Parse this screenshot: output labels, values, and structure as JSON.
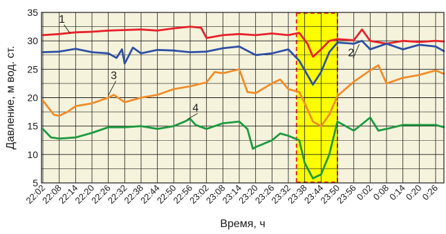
{
  "chart_data": {
    "type": "line",
    "xlabel": "Время, ч",
    "ylabel": "Давление, м вод. ст.",
    "ylim": [
      5,
      35
    ],
    "yticks": [
      5,
      10,
      15,
      20,
      25,
      30,
      35
    ],
    "x_tick_labels": [
      "22:02",
      "22:08",
      "22:14",
      "22:20",
      "22:26",
      "22:32",
      "22:38",
      "22:44",
      "22:50",
      "22:56",
      "23:02",
      "23:08",
      "23:14",
      "23:20",
      "23:26",
      "23:32",
      "23:38",
      "23:44",
      "23:50",
      "23:56",
      "0:02",
      "0:08",
      "0:14",
      "0:20",
      "0:26"
    ],
    "grid": true,
    "plot_background": "#f5f3dc",
    "highlight": {
      "x_start": "23:35",
      "x_end": "23:50",
      "fill_color": "#ffff00",
      "border_color": "#e03020"
    },
    "series": [
      {
        "name": "1",
        "color": "#e8202a",
        "x": [
          "22:02",
          "22:08",
          "22:14",
          "22:20",
          "22:26",
          "22:32",
          "22:38",
          "22:44",
          "22:50",
          "22:56",
          "23:00",
          "23:02",
          "23:08",
          "23:14",
          "23:20",
          "23:26",
          "23:32",
          "23:36",
          "23:39",
          "23:41",
          "23:44",
          "23:47",
          "23:50",
          "23:56",
          "23:59",
          "0:02",
          "0:08",
          "0:14",
          "0:20",
          "0:26",
          "0:29"
        ],
        "y": [
          31,
          31.2,
          31.5,
          31.6,
          31.8,
          31.9,
          32,
          31.8,
          32.2,
          32.5,
          32.3,
          30.5,
          31,
          31.2,
          31,
          31.3,
          31,
          31.4,
          29.5,
          27.2,
          28.5,
          30,
          30.3,
          30.1,
          32,
          30,
          29.5,
          30,
          29.8,
          30,
          29.9
        ]
      },
      {
        "name": "2",
        "color": "#2e4fa6",
        "x": [
          "22:02",
          "22:08",
          "22:14",
          "22:20",
          "22:26",
          "22:29",
          "22:31",
          "22:32",
          "22:35",
          "22:38",
          "22:44",
          "22:50",
          "22:56",
          "23:02",
          "23:08",
          "23:14",
          "23:20",
          "23:26",
          "23:32",
          "23:36",
          "23:39",
          "23:41",
          "23:44",
          "23:47",
          "23:50",
          "23:56",
          "23:59",
          "0:02",
          "0:08",
          "0:14",
          "0:20",
          "0:26",
          "0:29"
        ],
        "y": [
          28,
          28.1,
          28.6,
          28,
          27.8,
          27,
          28.5,
          26,
          28.8,
          27.8,
          28.4,
          28.3,
          28,
          28.1,
          28.7,
          29,
          27.5,
          27.8,
          28.5,
          26.5,
          24,
          22.3,
          24.5,
          28,
          29.7,
          29.5,
          30,
          28.5,
          29.5,
          28.5,
          29.3,
          29,
          28.2
        ]
      },
      {
        "name": "3",
        "color": "#f08c2a",
        "x": [
          "22:02",
          "22:06",
          "22:08",
          "22:11",
          "22:14",
          "22:20",
          "22:26",
          "22:28",
          "22:32",
          "22:38",
          "22:44",
          "22:50",
          "22:56",
          "23:02",
          "23:05",
          "23:08",
          "23:14",
          "23:17",
          "23:20",
          "23:26",
          "23:29",
          "23:32",
          "23:36",
          "23:38",
          "23:41",
          "23:44",
          "23:47",
          "23:50",
          "23:56",
          "0:02",
          "0:05",
          "0:08",
          "0:14",
          "0:20",
          "0:26",
          "0:29"
        ],
        "y": [
          19.5,
          17,
          16.8,
          17.5,
          18.5,
          19,
          20,
          20.5,
          19.2,
          20,
          20.5,
          21.5,
          22,
          22.7,
          24.5,
          24.3,
          25,
          21,
          20.8,
          22.5,
          23.2,
          21.5,
          21,
          19,
          15.8,
          15,
          17,
          20.3,
          22.8,
          24.8,
          25.7,
          22.5,
          23.5,
          24,
          24.8,
          24.2
        ]
      },
      {
        "name": "4",
        "color": "#1c9a40",
        "x": [
          "22:02",
          "22:05",
          "22:08",
          "22:14",
          "22:20",
          "22:26",
          "22:32",
          "22:38",
          "22:44",
          "22:50",
          "22:54",
          "22:56",
          "22:58",
          "23:02",
          "23:08",
          "23:14",
          "23:17",
          "23:19",
          "23:20",
          "23:26",
          "23:29",
          "23:32",
          "23:36",
          "23:38",
          "23:41",
          "23:44",
          "23:47",
          "23:50",
          "23:56",
          "0:02",
          "0:05",
          "0:08",
          "0:14",
          "0:20",
          "0:26",
          "0:29"
        ],
        "y": [
          14.5,
          13,
          12.8,
          13,
          13.8,
          14.8,
          14.8,
          15,
          14.5,
          15,
          15.8,
          16.3,
          15.2,
          14.5,
          15.5,
          15.8,
          14.5,
          11,
          11.3,
          12.5,
          13.7,
          13.3,
          12.5,
          8.5,
          5.8,
          6.5,
          10,
          15.8,
          14.2,
          16.5,
          14.2,
          14.5,
          15.2,
          15.2,
          15.2,
          14.8
        ]
      }
    ],
    "series_labels": [
      {
        "text": "1",
        "at_x": "22:09",
        "at_y": 33.2,
        "to_x": "22:12",
        "to_y": 31.3
      },
      {
        "text": "2",
        "at_x": "23:55",
        "at_y": 27.3,
        "to_x": "23:58",
        "to_y": 29.4
      },
      {
        "text": "3",
        "at_x": "22:28",
        "at_y": 23.3,
        "to_x": "22:26",
        "to_y": 20.4
      },
      {
        "text": "4",
        "at_x": "22:58",
        "at_y": 17.6,
        "to_x": "22:55",
        "to_y": 16.2
      }
    ]
  }
}
